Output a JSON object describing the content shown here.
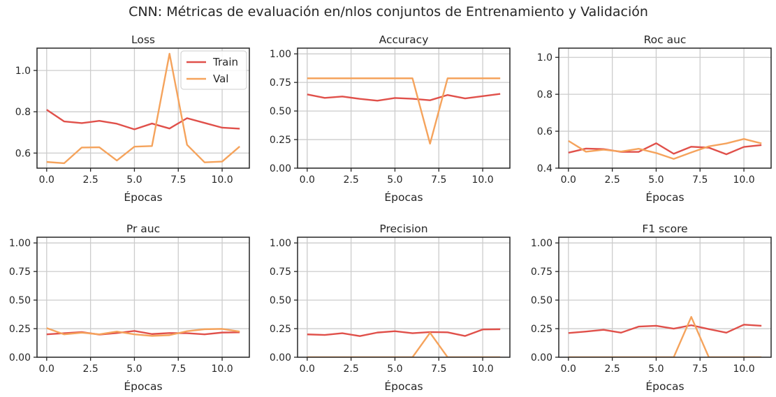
{
  "figure": {
    "title": "CNN: Métricas de evaluación en/nlos conjuntos de Entrenamiento y Validación"
  },
  "colors": {
    "train": "#e0504a",
    "val": "#f5a35c",
    "grid": "#cccccc",
    "axis": "#262626"
  },
  "chart_data": [
    {
      "type": "line",
      "title": "Loss",
      "xlabel": "Épocas",
      "ylabel": "",
      "xlim": [
        -0.55,
        11.55
      ],
      "ylim": [
        0.527,
        1.108
      ],
      "xticks": [
        0,
        2.5,
        5,
        7.5,
        10
      ],
      "xticklabels": [
        "0.0",
        "2.5",
        "5.0",
        "7.5",
        "10.0"
      ],
      "yticks": [
        0.6,
        0.8,
        1.0
      ],
      "yticklabels": [
        "0.6",
        "0.8",
        "1.0"
      ],
      "legend": {
        "position": "upper right",
        "entries": [
          "Train",
          "Val"
        ]
      },
      "x": [
        0,
        1,
        2,
        3,
        4,
        5,
        6,
        7,
        8,
        9,
        10,
        11
      ],
      "series": [
        {
          "name": "Train",
          "values": [
            0.81,
            0.753,
            0.745,
            0.756,
            0.742,
            0.715,
            0.743,
            0.719,
            0.769,
            0.746,
            0.723,
            0.718
          ]
        },
        {
          "name": "Val",
          "values": [
            0.557,
            0.551,
            0.627,
            0.628,
            0.564,
            0.631,
            0.634,
            1.081,
            0.64,
            0.555,
            0.559,
            0.632
          ]
        }
      ]
    },
    {
      "type": "line",
      "title": "Accuracy",
      "xlabel": "Épocas",
      "ylabel": "",
      "xlim": [
        -0.55,
        11.55
      ],
      "ylim": [
        0,
        1.05
      ],
      "xticks": [
        0,
        2.5,
        5,
        7.5,
        10
      ],
      "xticklabels": [
        "0.0",
        "2.5",
        "5.0",
        "7.5",
        "10.0"
      ],
      "yticks": [
        0,
        0.25,
        0.5,
        0.75,
        1.0
      ],
      "yticklabels": [
        "0.00",
        "0.25",
        "0.50",
        "0.75",
        "1.00"
      ],
      "x": [
        0,
        1,
        2,
        3,
        4,
        5,
        6,
        7,
        8,
        9,
        10,
        11
      ],
      "series": [
        {
          "name": "Train",
          "values": [
            0.645,
            0.615,
            0.627,
            0.606,
            0.59,
            0.614,
            0.607,
            0.594,
            0.64,
            0.61,
            0.63,
            0.65
          ]
        },
        {
          "name": "Val",
          "values": [
            0.786,
            0.786,
            0.786,
            0.786,
            0.786,
            0.786,
            0.786,
            0.214,
            0.786,
            0.786,
            0.786,
            0.786
          ]
        }
      ]
    },
    {
      "type": "line",
      "title": "Roc auc",
      "xlabel": "Épocas",
      "ylabel": "",
      "xlim": [
        -0.55,
        11.55
      ],
      "ylim": [
        0.4,
        1.05
      ],
      "xticks": [
        0,
        2.5,
        5,
        7.5,
        10
      ],
      "xticklabels": [
        "0.0",
        "2.5",
        "5.0",
        "7.5",
        "10.0"
      ],
      "yticks": [
        0.4,
        0.6,
        0.8,
        1.0
      ],
      "yticklabels": [
        "0.4",
        "0.6",
        "0.8",
        "1.0"
      ],
      "x": [
        0,
        1,
        2,
        3,
        4,
        5,
        6,
        7,
        8,
        9,
        10,
        11
      ],
      "series": [
        {
          "name": "Train",
          "values": [
            0.484,
            0.506,
            0.503,
            0.488,
            0.488,
            0.535,
            0.478,
            0.516,
            0.511,
            0.475,
            0.515,
            0.525
          ]
        },
        {
          "name": "Val",
          "values": [
            0.548,
            0.489,
            0.5,
            0.49,
            0.505,
            0.482,
            0.45,
            0.485,
            0.518,
            0.534,
            0.558,
            0.534
          ]
        }
      ]
    },
    {
      "type": "line",
      "title": "Pr auc",
      "xlabel": "Épocas",
      "ylabel": "",
      "xlim": [
        -0.55,
        11.55
      ],
      "ylim": [
        0,
        1.05
      ],
      "xticks": [
        0,
        2.5,
        5,
        7.5,
        10
      ],
      "xticklabels": [
        "0.0",
        "2.5",
        "5.0",
        "7.5",
        "10.0"
      ],
      "yticks": [
        0,
        0.25,
        0.5,
        0.75,
        1.0
      ],
      "yticklabels": [
        "0.00",
        "0.25",
        "0.50",
        "0.75",
        "1.00"
      ],
      "x": [
        0,
        1,
        2,
        3,
        4,
        5,
        6,
        7,
        8,
        9,
        10,
        11
      ],
      "series": [
        {
          "name": "Train",
          "values": [
            0.2,
            0.21,
            0.22,
            0.198,
            0.212,
            0.23,
            0.203,
            0.212,
            0.21,
            0.2,
            0.216,
            0.218
          ]
        },
        {
          "name": "Val",
          "values": [
            0.255,
            0.2,
            0.215,
            0.2,
            0.225,
            0.2,
            0.187,
            0.193,
            0.228,
            0.245,
            0.248,
            0.225
          ]
        }
      ]
    },
    {
      "type": "line",
      "title": "Precision",
      "xlabel": "Épocas",
      "ylabel": "",
      "xlim": [
        -0.55,
        11.55
      ],
      "ylim": [
        0,
        1.05
      ],
      "xticks": [
        0,
        2.5,
        5,
        7.5,
        10
      ],
      "xticklabels": [
        "0.0",
        "2.5",
        "5.0",
        "7.5",
        "10.0"
      ],
      "yticks": [
        0,
        0.25,
        0.5,
        0.75,
        1.0
      ],
      "yticklabels": [
        "0.00",
        "0.25",
        "0.50",
        "0.75",
        "1.00"
      ],
      "x": [
        0,
        1,
        2,
        3,
        4,
        5,
        6,
        7,
        8,
        9,
        10,
        11
      ],
      "series": [
        {
          "name": "Train",
          "values": [
            0.2,
            0.195,
            0.21,
            0.185,
            0.216,
            0.228,
            0.21,
            0.22,
            0.218,
            0.186,
            0.243,
            0.245
          ]
        },
        {
          "name": "Val",
          "values": [
            0,
            0,
            0,
            0,
            0,
            0,
            0,
            0.214,
            0,
            0,
            0,
            0
          ]
        }
      ]
    },
    {
      "type": "line",
      "title": "F1 score",
      "xlabel": "Épocas",
      "ylabel": "",
      "xlim": [
        -0.55,
        11.55
      ],
      "ylim": [
        0,
        1.05
      ],
      "xticks": [
        0,
        2.5,
        5,
        7.5,
        10
      ],
      "xticklabels": [
        "0.0",
        "2.5",
        "5.0",
        "7.5",
        "10.0"
      ],
      "yticks": [
        0,
        0.25,
        0.5,
        0.75,
        1.0
      ],
      "yticklabels": [
        "0.00",
        "0.25",
        "0.50",
        "0.75",
        "1.00"
      ],
      "x": [
        0,
        1,
        2,
        3,
        4,
        5,
        6,
        7,
        8,
        9,
        10,
        11
      ],
      "series": [
        {
          "name": "Train",
          "values": [
            0.212,
            0.225,
            0.24,
            0.215,
            0.268,
            0.275,
            0.25,
            0.28,
            0.246,
            0.215,
            0.285,
            0.275
          ]
        },
        {
          "name": "Val",
          "values": [
            0,
            0,
            0,
            0,
            0,
            0,
            0,
            0.353,
            0,
            0,
            0,
            0
          ]
        }
      ]
    }
  ]
}
